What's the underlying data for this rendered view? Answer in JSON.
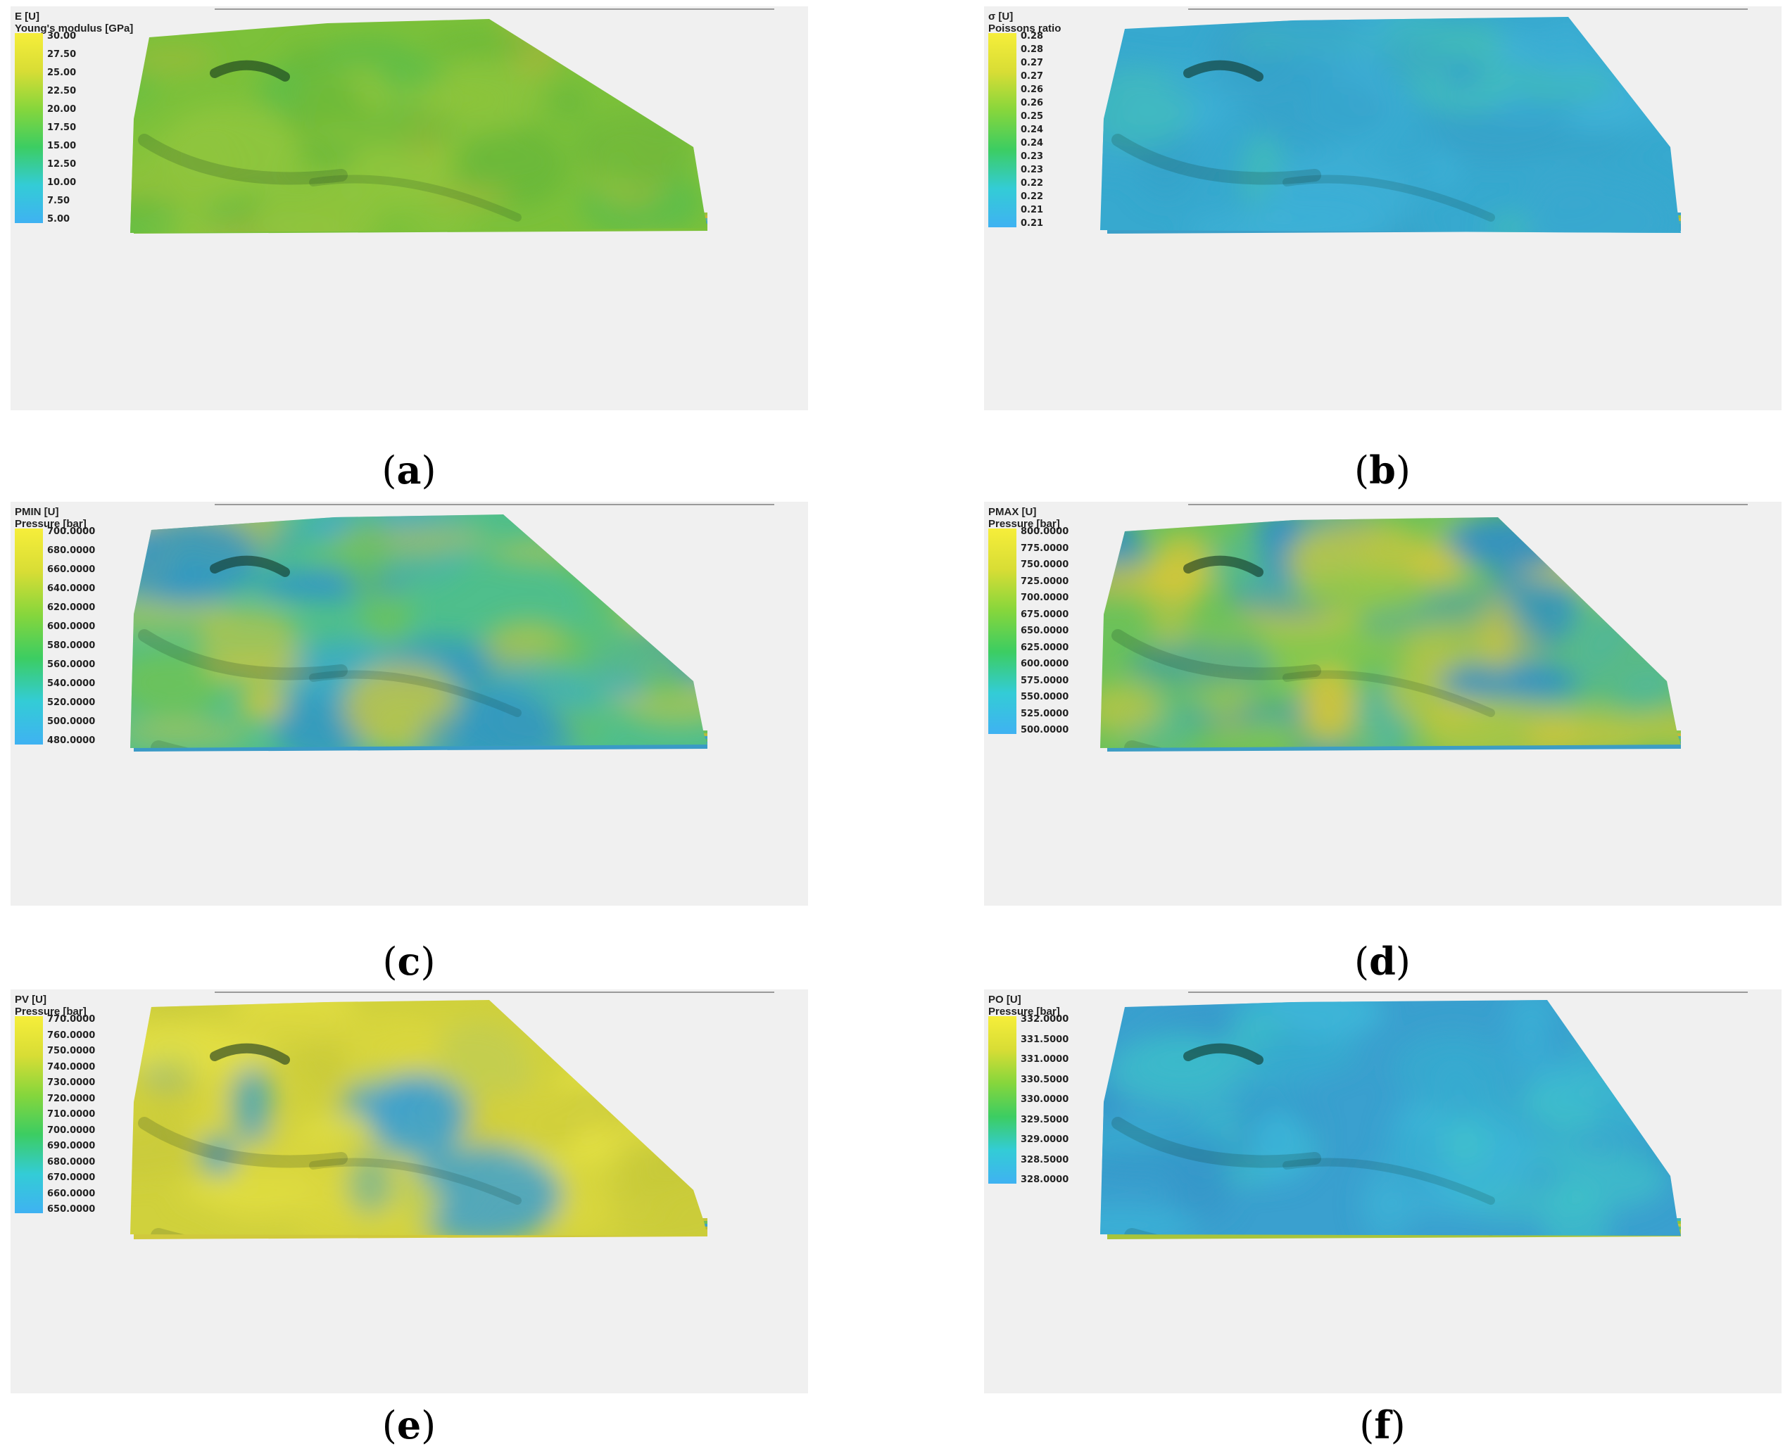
{
  "colors": {
    "panel_bg": "#f0f0f0",
    "ramp": [
      "#3fb2f2",
      "#33ccd6",
      "#3ccd62",
      "#86d63c",
      "#d8dd35",
      "#f6ee3a"
    ]
  },
  "panels": [
    {
      "id": "a",
      "caption": "a",
      "legend_title": "E [U]",
      "legend_subtitle": "Young's modulus [GPa]",
      "ticks": [
        "30.00",
        "27.50",
        "25.00",
        "22.50",
        "20.00",
        "17.50",
        "15.00",
        "12.50",
        "10.00",
        "7.50",
        "5.00"
      ],
      "surface_colors": [
        "#7cc13a",
        "#68b83a",
        "#8fc53d",
        "#5fbd48",
        "#a3b93a"
      ],
      "layer_colors": [
        "#9ac23c",
        "#c7b43a",
        "#5db0a5",
        "#3ea5c6",
        "#7cc13a"
      ]
    },
    {
      "id": "b",
      "caption": "b",
      "legend_title": "σ [U]",
      "legend_subtitle": "Poissons ratio",
      "ticks": [
        "0.28",
        "0.28",
        "0.27",
        "0.27",
        "0.26",
        "0.26",
        "0.25",
        "0.24",
        "0.24",
        "0.23",
        "0.23",
        "0.22",
        "0.22",
        "0.21",
        "0.21"
      ],
      "surface_colors": [
        "#37a9cf",
        "#3fb1d6",
        "#41bcb8",
        "#36a2c9",
        "#3aa8cf"
      ],
      "layer_colors": [
        "#37a3c8",
        "#9bc43e",
        "#c8b53c",
        "#4bb3a8",
        "#3b9fc8"
      ]
    },
    {
      "id": "c",
      "caption": "c",
      "legend_title": "PMIN [U]",
      "legend_subtitle": "Pressure [bar]",
      "ticks": [
        "700.0000",
        "680.0000",
        "660.0000",
        "640.0000",
        "620.0000",
        "600.0000",
        "580.0000",
        "560.0000",
        "540.0000",
        "520.0000",
        "500.0000",
        "480.0000"
      ],
      "surface_colors": [
        "#4fbf8c",
        "#d4c63a",
        "#3aa8cc",
        "#6cc25a",
        "#2f94c8"
      ],
      "layer_colors": [
        "#6cc25a",
        "#b9bd3c",
        "#3ea3c4",
        "#5cba6a",
        "#3a9ac6"
      ]
    },
    {
      "id": "d",
      "caption": "d",
      "legend_title": "PMAX [U]",
      "legend_subtitle": "Pressure [bar]",
      "ticks": [
        "800.0000",
        "775.0000",
        "750.0000",
        "725.0000",
        "700.0000",
        "675.0000",
        "650.0000",
        "625.0000",
        "600.0000",
        "575.0000",
        "550.0000",
        "525.0000",
        "500.0000"
      ],
      "surface_colors": [
        "#6cc25a",
        "#d4c63a",
        "#4fb6a0",
        "#8ec84a",
        "#2f8fc6"
      ],
      "layer_colors": [
        "#8ec84a",
        "#c9b83a",
        "#4cb2a6",
        "#70bf55",
        "#3d9dc4"
      ]
    },
    {
      "id": "e",
      "caption": "e",
      "legend_title": "PV [U]",
      "legend_subtitle": "Pressure [bar]",
      "ticks": [
        "770.0000",
        "760.0000",
        "750.0000",
        "740.0000",
        "730.0000",
        "720.0000",
        "710.0000",
        "700.0000",
        "690.0000",
        "680.0000",
        "670.0000",
        "660.0000",
        "650.0000"
      ],
      "surface_colors": [
        "#d0d13c",
        "#e3e043",
        "#c6c83a",
        "#d9d63e",
        "#3a9fd0"
      ],
      "layer_colors": [
        "#c3c53c",
        "#6fbf55",
        "#3ea3c4",
        "#b7b93a",
        "#d0c93c"
      ]
    },
    {
      "id": "f",
      "caption": "f",
      "legend_title": "PO [U]",
      "legend_subtitle": "Pressure [bar]",
      "ticks": [
        "332.0000",
        "331.5000",
        "331.0000",
        "330.5000",
        "330.0000",
        "329.5000",
        "329.0000",
        "328.5000",
        "328.0000"
      ],
      "surface_colors": [
        "#3aa0cf",
        "#3cb6d8",
        "#3fc2c8",
        "#3596c9",
        "#37aacf"
      ],
      "layer_colors": [
        "#3fb8bd",
        "#8cc43f",
        "#c8c63a",
        "#5bbf75",
        "#a8c43b"
      ]
    }
  ]
}
